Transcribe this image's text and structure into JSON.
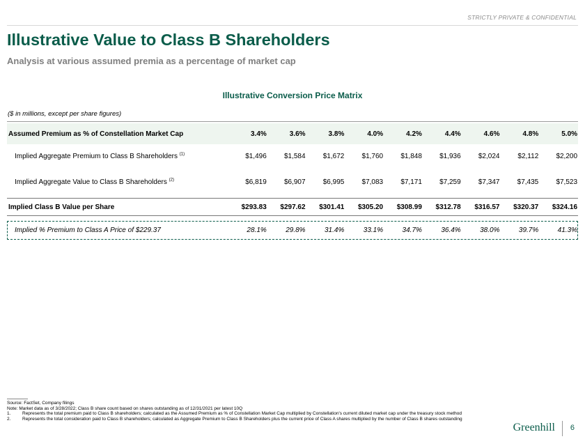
{
  "confidential": "STRICTLY PRIVATE & CONFIDENTIAL",
  "title": "Illustrative Value to Class B Shareholders",
  "subtitle": "Analysis at various assumed premia as a percentage of market cap",
  "matrix_title": "Illustrative Conversion Price Matrix",
  "units_note": "($ in millions, except per share figures)",
  "table": {
    "header_label": "Assumed Premium as % of Constellation Market Cap",
    "columns": [
      "3.4%",
      "3.6%",
      "3.8%",
      "4.0%",
      "4.2%",
      "4.4%",
      "4.6%",
      "4.8%",
      "5.0%"
    ],
    "rows": [
      {
        "label": "Implied Aggregate Premium to Class B Shareholders",
        "sup": "(1)",
        "values": [
          "$1,496",
          "$1,584",
          "$1,672",
          "$1,760",
          "$1,848",
          "$1,936",
          "$2,024",
          "$2,112",
          "$2,200"
        ]
      },
      {
        "label": "Implied Aggregate Value to Class B Shareholders",
        "sup": "(2)",
        "values": [
          "$6,819",
          "$6,907",
          "$6,995",
          "$7,083",
          "$7,171",
          "$7,259",
          "$7,347",
          "$7,435",
          "$7,523"
        ]
      },
      {
        "label": "Implied Class B Value per Share",
        "sup": "",
        "values": [
          "$293.83",
          "$297.62",
          "$301.41",
          "$305.20",
          "$308.99",
          "$312.78",
          "$316.57",
          "$320.37",
          "$324.16"
        ]
      },
      {
        "label": "Implied % Premium to Class A Price of $229.37",
        "sup": "",
        "values": [
          "28.1%",
          "29.8%",
          "31.4%",
          "33.1%",
          "34.7%",
          "36.4%",
          "38.0%",
          "39.7%",
          "41.3%"
        ]
      }
    ]
  },
  "footnotes": {
    "source": "Source: FactSet, Company filings",
    "note": "Note: Market data as of 3/28/2022; Class B share count based on shares outstanding as of 12/31/2021 per latest 10Q",
    "items": [
      {
        "num": "1.",
        "text": "Represents the total premium paid to Class B shareholders; calculated as the Assumed Premium as % of Constellation Market Cap multiplied by Constellation's current diluted market cap under the treasury stock method"
      },
      {
        "num": "2.",
        "text": "Represents the total consideration paid to Class B shareholders; calculated as Aggregate Premium to Class B Shareholders plus the current price of Class A shares multiplied by the number of Class B shares outstanding"
      }
    ]
  },
  "logo": "Greenhill",
  "page_number": "6"
}
